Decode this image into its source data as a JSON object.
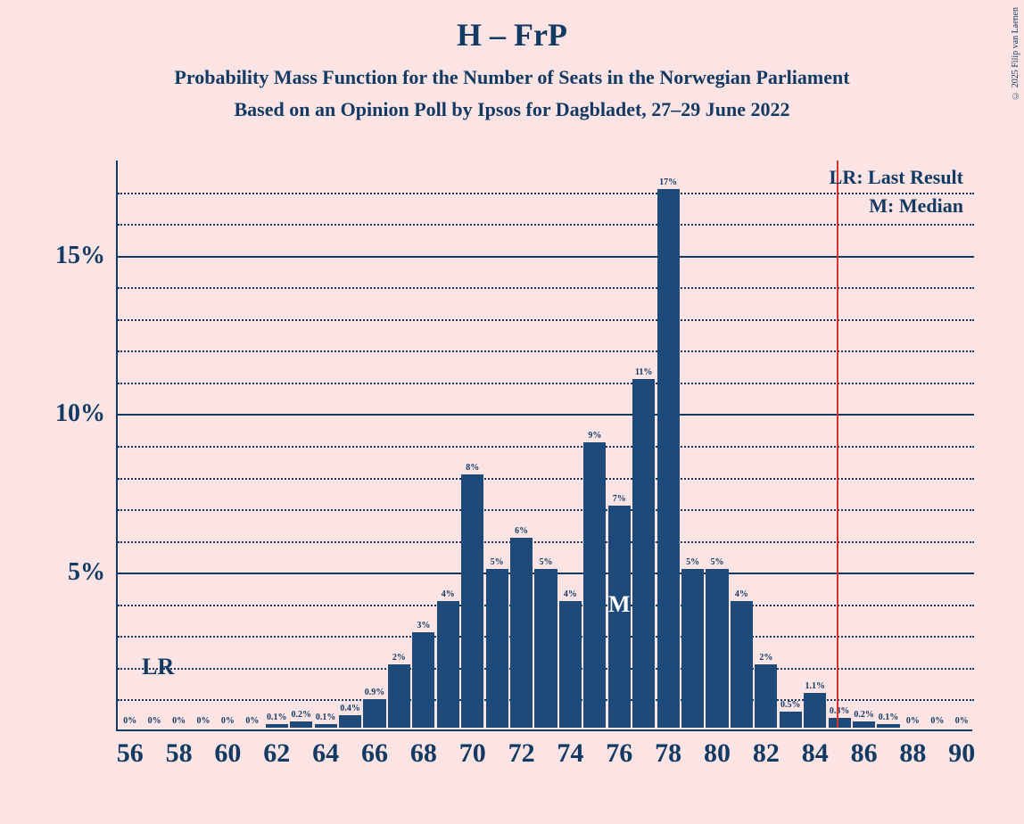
{
  "title": "H – FrP",
  "subtitle": "Probability Mass Function for the Number of Seats in the Norwegian Parliament",
  "subtitle2": "Based on an Opinion Poll by Ipsos for Dagbladet, 27–29 June 2022",
  "copyright": "© 2025 Filip van Laenen",
  "legend_lr": "LR: Last Result",
  "legend_m": "M: Median",
  "lr_label": "LR",
  "m_label": "M",
  "chart": {
    "type": "bar",
    "background_color": "#fce4e4",
    "bar_color": "#1e4a7a",
    "axis_color": "#123a63",
    "grid_color": "#123a63",
    "vline_color": "#d6332a",
    "text_color": "#123a63",
    "title_fontsize": 36,
    "subtitle_fontsize": 22,
    "ytick_fontsize": 28,
    "xtick_fontsize": 30,
    "barlabel_fontsize": 10,
    "legend_fontsize": 22,
    "xlim": [
      55.5,
      90.5
    ],
    "ylim": [
      0,
      18
    ],
    "y_major_ticks": [
      5,
      10,
      15
    ],
    "y_minor_step": 1,
    "x_tick_step": 2,
    "x_tick_start": 56,
    "x_tick_end": 90,
    "bar_width": 0.92,
    "lr_x": 57,
    "median_x": 76,
    "vline_x": 84.9,
    "bars": [
      {
        "x": 56,
        "v": 0,
        "label": "0%"
      },
      {
        "x": 57,
        "v": 0,
        "label": "0%"
      },
      {
        "x": 58,
        "v": 0,
        "label": "0%"
      },
      {
        "x": 59,
        "v": 0,
        "label": "0%"
      },
      {
        "x": 60,
        "v": 0,
        "label": "0%"
      },
      {
        "x": 61,
        "v": 0,
        "label": "0%"
      },
      {
        "x": 62,
        "v": 0.1,
        "label": "0.1%"
      },
      {
        "x": 63,
        "v": 0.2,
        "label": "0.2%"
      },
      {
        "x": 64,
        "v": 0.1,
        "label": "0.1%"
      },
      {
        "x": 65,
        "v": 0.4,
        "label": "0.4%"
      },
      {
        "x": 66,
        "v": 0.9,
        "label": "0.9%"
      },
      {
        "x": 67,
        "v": 2,
        "label": "2%"
      },
      {
        "x": 68,
        "v": 3,
        "label": "3%"
      },
      {
        "x": 69,
        "v": 4,
        "label": "4%"
      },
      {
        "x": 70,
        "v": 8,
        "label": "8%"
      },
      {
        "x": 71,
        "v": 5,
        "label": "5%"
      },
      {
        "x": 72,
        "v": 6,
        "label": "6%"
      },
      {
        "x": 73,
        "v": 5,
        "label": "5%"
      },
      {
        "x": 74,
        "v": 4,
        "label": "4%"
      },
      {
        "x": 75,
        "v": 9,
        "label": "9%"
      },
      {
        "x": 76,
        "v": 7,
        "label": "7%"
      },
      {
        "x": 77,
        "v": 11,
        "label": "11%"
      },
      {
        "x": 78,
        "v": 17,
        "label": "17%"
      },
      {
        "x": 79,
        "v": 5,
        "label": "5%"
      },
      {
        "x": 80,
        "v": 5,
        "label": "5%"
      },
      {
        "x": 81,
        "v": 4,
        "label": "4%"
      },
      {
        "x": 82,
        "v": 2,
        "label": "2%"
      },
      {
        "x": 83,
        "v": 0.5,
        "label": "0.5%"
      },
      {
        "x": 84,
        "v": 1.1,
        "label": "1.1%"
      },
      {
        "x": 85,
        "v": 0.3,
        "label": "0.3%"
      },
      {
        "x": 86,
        "v": 0.2,
        "label": "0.2%"
      },
      {
        "x": 87,
        "v": 0.1,
        "label": "0.1%"
      },
      {
        "x": 88,
        "v": 0,
        "label": "0%"
      },
      {
        "x": 89,
        "v": 0,
        "label": "0%"
      },
      {
        "x": 90,
        "v": 0,
        "label": "0%"
      }
    ]
  }
}
